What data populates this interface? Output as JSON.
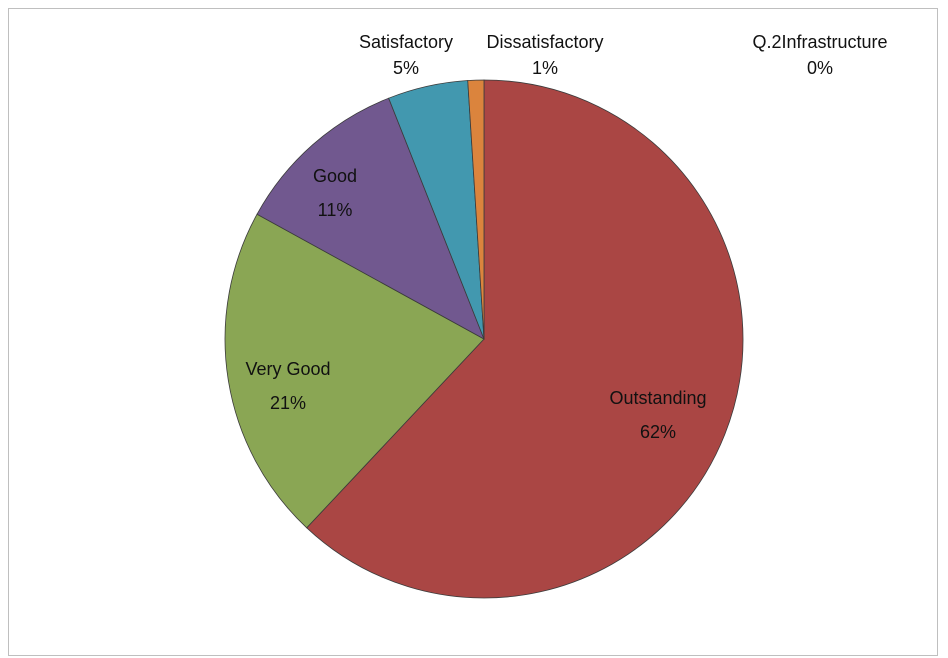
{
  "chart_data": {
    "type": "pie",
    "title": "",
    "categories": [
      "Q.2Infrastructure",
      "Outstanding",
      "Very Good",
      "Good",
      "Satisfactory",
      "Dissatisfactory"
    ],
    "values": [
      0,
      62,
      21,
      11,
      5,
      1
    ],
    "labels": [
      "0%",
      "62%",
      "21%",
      "11%",
      "5%",
      "1%"
    ],
    "colors": [
      "#4f81bd",
      "#aa4644",
      "#8aa654",
      "#71588f",
      "#4298af",
      "#db843d"
    ],
    "legend": "none",
    "data_labels": "category and percentage"
  }
}
